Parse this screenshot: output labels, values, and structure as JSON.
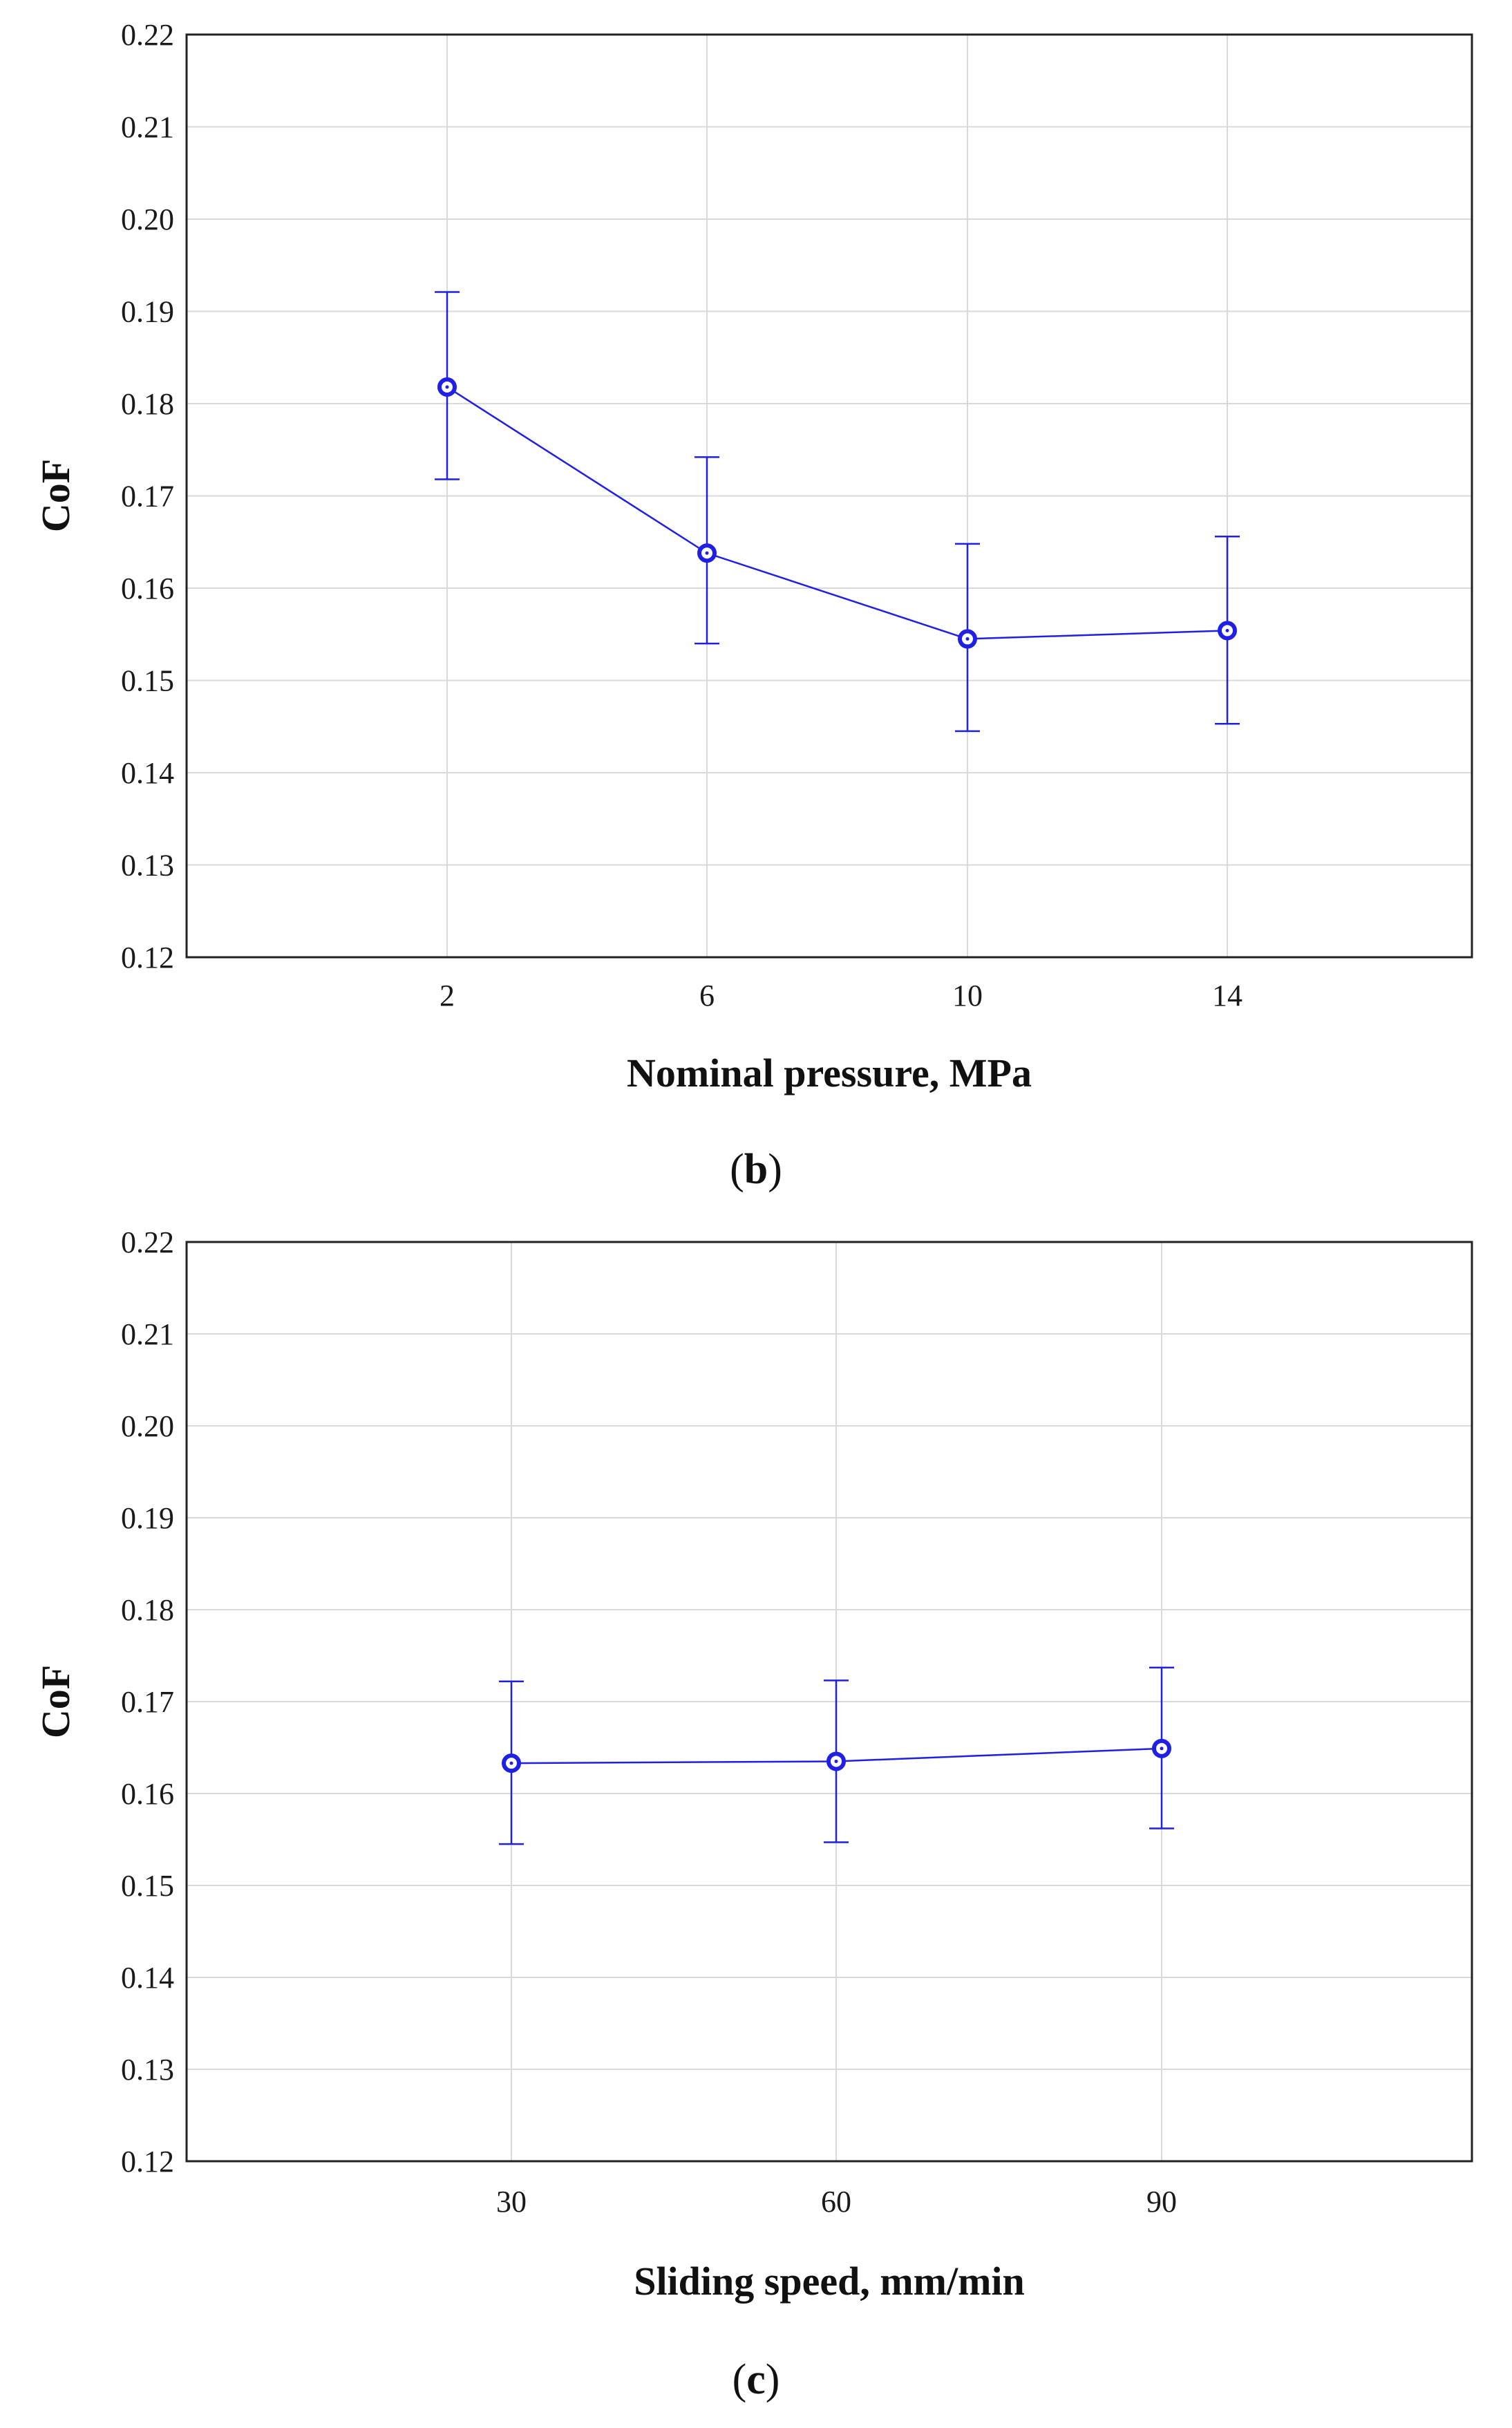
{
  "chart_data": [
    {
      "type": "line",
      "panel_id": "b",
      "xlabel": "Nominal pressure, MPa",
      "ylabel": "CoF",
      "categories": [
        "2",
        "6",
        "10",
        "14"
      ],
      "values": [
        0.1818,
        0.1638,
        0.1545,
        0.1554
      ],
      "error_lower": [
        0.1718,
        0.154,
        0.1445,
        0.1453
      ],
      "error_upper": [
        0.1921,
        0.1742,
        0.1648,
        0.1656
      ],
      "ylim": [
        0.12,
        0.22
      ],
      "yticks": [
        "0.12",
        "0.13",
        "0.14",
        "0.15",
        "0.16",
        "0.17",
        "0.18",
        "0.19",
        "0.20",
        "0.21",
        "0.22"
      ],
      "grid": true,
      "series_color": "#1f1fe6"
    },
    {
      "type": "line",
      "panel_id": "c",
      "xlabel": "Sliding speed, mm/min",
      "ylabel": "CoF",
      "categories": [
        "30",
        "60",
        "90"
      ],
      "values": [
        0.1633,
        0.1635,
        0.1649
      ],
      "error_lower": [
        0.1545,
        0.1547,
        0.1562
      ],
      "error_upper": [
        0.1722,
        0.1723,
        0.1737
      ],
      "ylim": [
        0.12,
        0.22
      ],
      "yticks": [
        "0.12",
        "0.13",
        "0.14",
        "0.15",
        "0.16",
        "0.17",
        "0.18",
        "0.19",
        "0.20",
        "0.21",
        "0.22"
      ],
      "grid": true,
      "series_color": "#1f1fe6"
    }
  ]
}
